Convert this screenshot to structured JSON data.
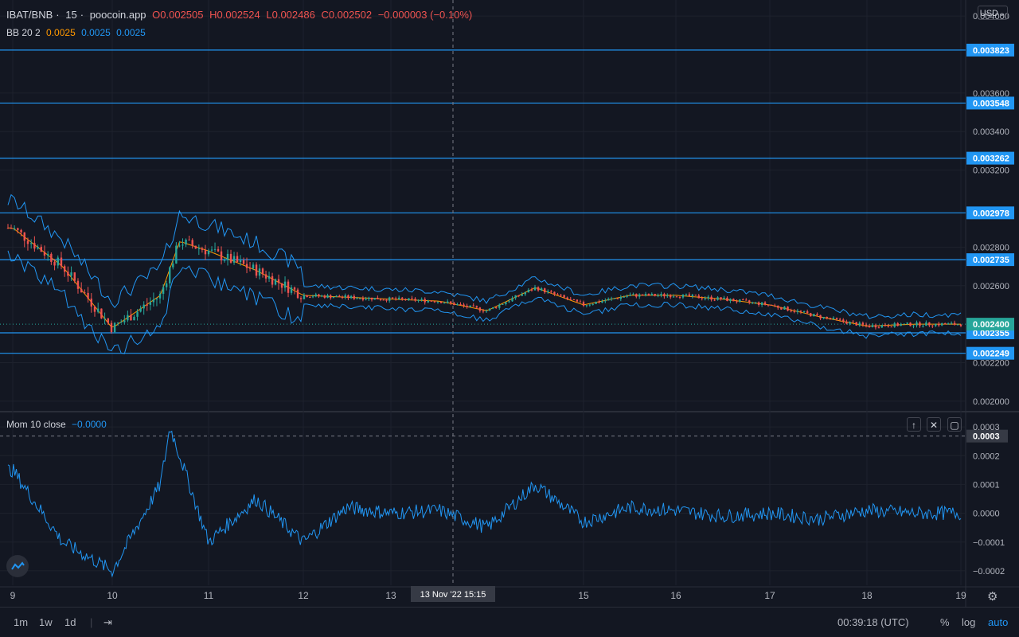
{
  "header": {
    "symbol": "IBAT/BNB",
    "interval": "15",
    "source": "poocoin.app",
    "open": "O0.002505",
    "high": "H0.002524",
    "low": "L0.002486",
    "close": "C0.002502",
    "change": "−0.000003 (−0.10%)",
    "bb_label": "BB 20 2",
    "bb_values": [
      "0.0025",
      "0.0025",
      "0.0025"
    ]
  },
  "currency": "USD",
  "mom": {
    "label": "Mom 10 close",
    "value": "−0.0000"
  },
  "price_axis_ticks": [
    "0.004000",
    "0.003600",
    "0.003400",
    "0.003200",
    "0.002800",
    "0.002600",
    "0.002200",
    "0.002000"
  ],
  "horizontal_lines": [
    "0.003823",
    "0.003548",
    "0.003262",
    "0.002978",
    "0.002735",
    "0.002355",
    "0.002249"
  ],
  "last_price_label": "0.002400",
  "mom_axis_ticks": [
    "0.0003",
    "0.0002",
    "0.0001",
    "0.0000",
    "−0.0001",
    "−0.0002"
  ],
  "mom_level_label": "0.0003",
  "time_axis_ticks": [
    "9",
    "10",
    "11",
    "12",
    "13",
    "15",
    "16",
    "17",
    "18",
    "19"
  ],
  "crosshair_time": "13 Nov '22   15:15",
  "toolbar": {
    "ranges": [
      "1m",
      "1w",
      "1d"
    ],
    "clock": "00:39:18 (UTC)",
    "percent": "%",
    "log": "log",
    "auto": "auto"
  },
  "colors": {
    "background": "#131722",
    "up": "#26a69a",
    "down": "#ef5350",
    "line": "#2196f3",
    "basis": "#ff9800"
  },
  "chart_data": [
    {
      "type": "line",
      "title": "IBAT/BNB · 15 · poocoin.app",
      "series": [
        {
          "name": "BB 20 2",
          "x": [
            9,
            9.5,
            10,
            10.5,
            10.7,
            11,
            11.5,
            12,
            12.5,
            13,
            13.5,
            14,
            14.5,
            15,
            15.5,
            16,
            16.5,
            17,
            17.5,
            18,
            18.5,
            19
          ],
          "values": [
            0.0029,
            0.0027,
            0.00238,
            0.00255,
            0.00283,
            0.00278,
            0.00268,
            0.00255,
            0.00254,
            0.00253,
            0.00252,
            0.00247,
            0.00259,
            0.0025,
            0.00255,
            0.00255,
            0.00253,
            0.0025,
            0.00244,
            0.00239,
            0.0024,
            0.0024
          ]
        }
      ],
      "ylim": [
        0.00195,
        0.00405
      ],
      "levels": [
        0.003823,
        0.003548,
        0.003262,
        0.002978,
        0.002735,
        0.002355,
        0.002249
      ],
      "last": 0.0024
    },
    {
      "type": "line",
      "title": "Mom 10 close",
      "series": [
        {
          "name": "Mom 10 close",
          "x": [
            9,
            9.5,
            10,
            10.5,
            10.6,
            11,
            11.5,
            12,
            12.5,
            13,
            13.5,
            14,
            14.5,
            15,
            15.5,
            16,
            16.5,
            17,
            17.5,
            18,
            18.5,
            19
          ],
          "values": [
            0.00015,
            -0.0001,
            -0.0002,
            0.0001,
            0.0003,
            -0.0001,
            5e-05,
            -0.0001,
            2e-05,
            0.0,
            1e-05,
            -5e-05,
            0.0001,
            -3e-05,
            2e-05,
            1e-05,
            -1e-05,
            0.0,
            -2e-05,
            1e-05,
            0.0,
            0.0
          ]
        }
      ],
      "ylim": [
        -0.00025,
        0.00035
      ]
    }
  ]
}
